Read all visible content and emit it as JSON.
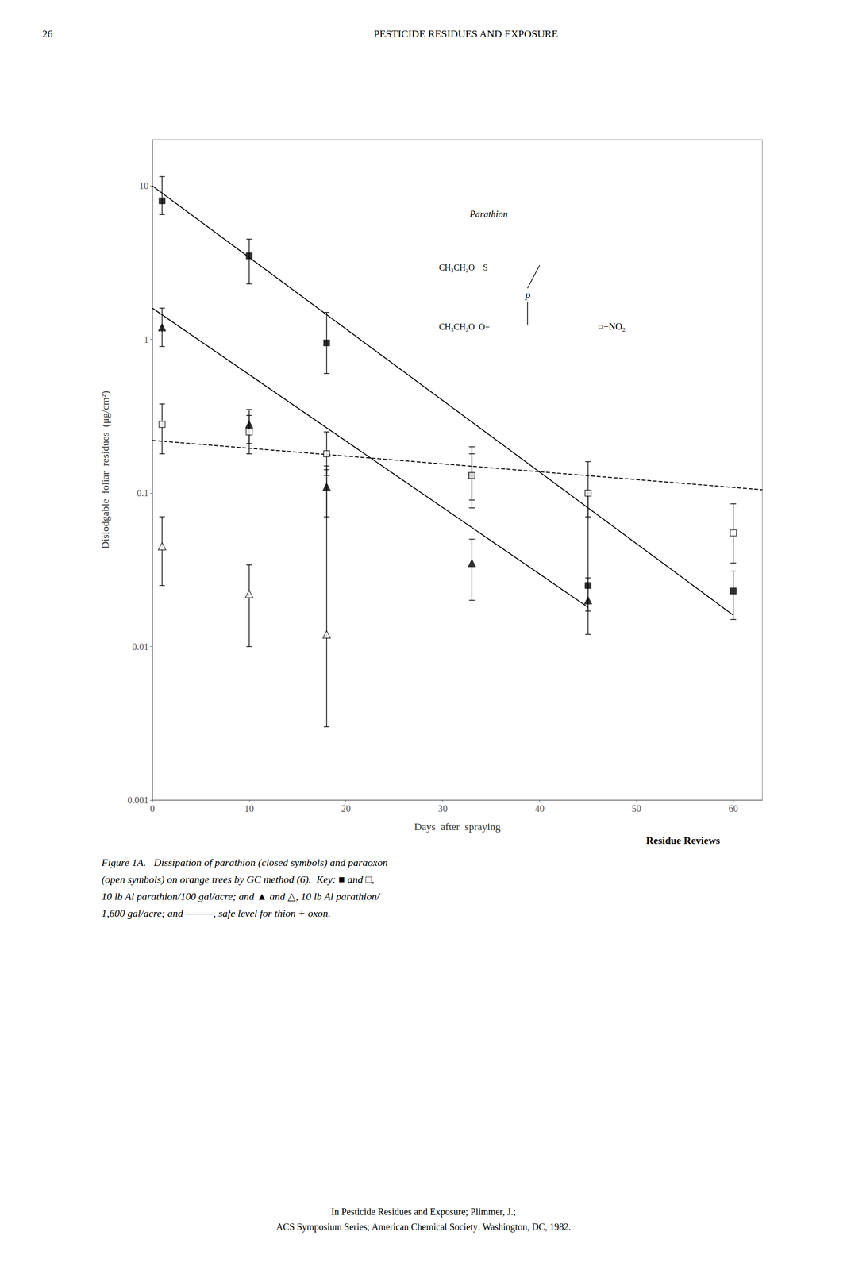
{
  "chart_data": {
    "type": "scatter",
    "title": "Figure 1A.   Dissipation of parathion (closed symbols) and paraoxon\n(open symbols) on orange trees by GC method (6).  Key: ■ and □,\n10 lb Al parathion/100 gal/acre; and ▲ and △, 10 lb Al parathion/\n1,600 gal/acre; and ———, safe level for thion + oxon.",
    "page_number": "26",
    "header": "PESTICIDE RESIDUES AND EXPOSURE",
    "footer": "Residue Reviews",
    "source": "In Pesticide Residues and Exposure; Plimmer, J.;\nACS Symposium Series; American Chemical Society: Washington, DC, 1982.",
    "xlabel": "Days  after  spraying",
    "ylabel": "Dislodgable  foliar  residues  (μg/cm²)",
    "log": "y",
    "grid": false,
    "legend": false,
    "xlim": [
      0,
      63
    ],
    "xticks": [
      0,
      10,
      20,
      30,
      40,
      50,
      60
    ],
    "ylim": [
      0.001,
      20
    ],
    "yticks": [
      0.001,
      0.01,
      0.1,
      1,
      10
    ],
    "annotations": [
      "Parathion",
      "CH₃CH₂O    S",
      "CH₃CH₂O  O−",
      "P",
      "○−NO₂"
    ],
    "series": [
      {
        "type": "line",
        "color": "#000000",
        "line_style": "dashed",
        "x": [
          0,
          63
        ],
        "values": [
          0.22,
          0.105
        ]
      },
      {
        "type": "line",
        "color": "#000000",
        "line_style": "solid",
        "x": [
          0,
          60
        ],
        "values": [
          10.0,
          0.016
        ]
      },
      {
        "type": "line",
        "color": "#000000",
        "line_style": "solid",
        "x": [
          0,
          45
        ],
        "values": [
          1.6,
          0.018
        ]
      },
      {
        "type": "scatter",
        "color": "#000000",
        "marker": "square",
        "x": [
          1,
          10,
          18,
          33,
          45,
          60
        ],
        "values": [
          8.0,
          3.5,
          0.95,
          0.13,
          0.025,
          0.023
        ],
        "error_minus": [
          1.5,
          1.2,
          0.35,
          0.05,
          0.008,
          0.008
        ],
        "error_plus": [
          3.5,
          1.0,
          0.55,
          0.05,
          0.075,
          0.008
        ]
      },
      {
        "type": "scatter",
        "color": "#000000",
        "marker": "open_square",
        "x": [
          1,
          10,
          18,
          33,
          45,
          60
        ],
        "values": [
          0.28,
          0.25,
          0.18,
          0.13,
          0.1,
          0.055
        ],
        "error_minus": [
          0.1,
          0.07,
          0.05,
          0.04,
          0.03,
          0.02
        ],
        "error_plus": [
          0.1,
          0.07,
          0.07,
          0.07,
          0.06,
          0.03
        ]
      },
      {
        "type": "scatter",
        "color": "#000000",
        "marker": "triangle",
        "x": [
          1,
          10,
          18,
          33,
          45
        ],
        "values": [
          1.2,
          0.28,
          0.11,
          0.035,
          0.02
        ],
        "error_minus": [
          0.3,
          0.07,
          0.04,
          0.015,
          0.008
        ],
        "error_plus": [
          0.4,
          0.07,
          0.04,
          0.015,
          0.008
        ]
      },
      {
        "type": "scatter",
        "color": "#000000",
        "marker": "open_triangle",
        "x": [
          1,
          10,
          18
        ],
        "values": [
          0.045,
          0.022,
          0.012
        ],
        "error_minus": [
          0.02,
          0.012,
          0.009
        ],
        "error_plus": [
          0.025,
          0.012,
          0.13
        ]
      }
    ]
  }
}
